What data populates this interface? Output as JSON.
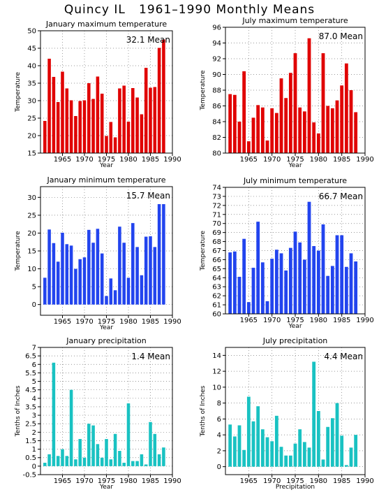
{
  "page_title": "Quincy IL   1961–1990 Monthly Means",
  "colors": {
    "red": "#e00000",
    "blue": "#2244ee",
    "teal": "#19c2c2",
    "grid": "#777777"
  },
  "chart_data": [
    {
      "type": "bar",
      "title": "January maximum temperature",
      "ylabel": "Temperature",
      "xlabel": "Year",
      "annotation": "32.1 Mean",
      "color": "#e00000",
      "x": [
        1961,
        1962,
        1963,
        1964,
        1965,
        1966,
        1967,
        1968,
        1969,
        1970,
        1971,
        1972,
        1973,
        1974,
        1975,
        1976,
        1977,
        1978,
        1979,
        1980,
        1981,
        1982,
        1983,
        1984,
        1985,
        1986,
        1987,
        1988,
        1989,
        1990
      ],
      "values": [
        24.2,
        42,
        36.8,
        29.6,
        38.3,
        33.5,
        30.1,
        25.6,
        29.9,
        30.1,
        35,
        30.5,
        36.9,
        32,
        19.9,
        23.9,
        19.5,
        33.5,
        34.3,
        24,
        33.6,
        30.9,
        26.1,
        39.4,
        33.7,
        33.9,
        45.1,
        47.5,
        null,
        null
      ],
      "ylim": [
        15,
        50
      ],
      "yticks": [
        15,
        20,
        25,
        30,
        35,
        40,
        45,
        50
      ],
      "ytick_labels": [
        "15",
        "20",
        "25",
        "30",
        "35",
        "40",
        "45",
        "50"
      ],
      "xlim": [
        1960,
        1990
      ],
      "xticks": [
        1965,
        1970,
        1975,
        1980,
        1985,
        1990
      ]
    },
    {
      "type": "bar",
      "title": "July maximum temperature",
      "ylabel": "Temperature",
      "xlabel": "Year",
      "annotation": "87.0 Mean",
      "color": "#e00000",
      "x": [
        1961,
        1962,
        1963,
        1964,
        1965,
        1966,
        1967,
        1968,
        1969,
        1970,
        1971,
        1972,
        1973,
        1974,
        1975,
        1976,
        1977,
        1978,
        1979,
        1980,
        1981,
        1982,
        1983,
        1984,
        1985,
        1986,
        1987,
        1988,
        1989,
        1990
      ],
      "values": [
        87.5,
        87.4,
        84,
        90.4,
        81.5,
        84.5,
        86.1,
        85.8,
        81.6,
        85.7,
        85.1,
        89.5,
        87,
        90.2,
        92.7,
        85.8,
        85.3,
        94.6,
        83.9,
        82.5,
        92.7,
        86,
        85.7,
        86.7,
        88.6,
        91.4,
        88,
        85.2,
        null,
        null
      ],
      "ylim": [
        80,
        96
      ],
      "yticks": [
        80,
        82,
        84,
        86,
        88,
        90,
        92,
        94,
        96
      ],
      "ytick_labels": [
        "80",
        "82",
        "84",
        "86",
        "88",
        "90",
        "92",
        "94",
        "96"
      ],
      "xlim": [
        1960,
        1990
      ],
      "xticks": [
        1965,
        1970,
        1975,
        1980,
        1985,
        1990
      ]
    },
    {
      "type": "bar",
      "title": "January minimum temperature",
      "ylabel": "Temperature",
      "xlabel": "Year",
      "annotation": "15.7 Mean",
      "color": "#2244ee",
      "x": [
        1961,
        1962,
        1963,
        1964,
        1965,
        1966,
        1967,
        1968,
        1969,
        1970,
        1971,
        1972,
        1973,
        1974,
        1975,
        1976,
        1977,
        1978,
        1979,
        1980,
        1981,
        1982,
        1983,
        1984,
        1985,
        1986,
        1987,
        1988,
        1989,
        1990
      ],
      "values": [
        7.5,
        21,
        17.2,
        12,
        20.1,
        16.9,
        16.5,
        10,
        12.7,
        13.2,
        20.9,
        17.3,
        21.2,
        14.3,
        2.4,
        7.3,
        4,
        21.8,
        17.3,
        7.5,
        22.8,
        16.1,
        8.2,
        19,
        19.1,
        16.1,
        28.1,
        28.1,
        null,
        null
      ],
      "ylim": [
        -3,
        33
      ],
      "yticks": [
        0,
        5,
        10,
        15,
        20,
        25,
        30
      ],
      "ytick_labels": [
        "0",
        "5",
        "10",
        "15",
        "20",
        "25",
        "30"
      ],
      "xlim": [
        1960,
        1990
      ],
      "xticks": [
        1965,
        1970,
        1975,
        1980,
        1985,
        1990
      ]
    },
    {
      "type": "bar",
      "title": "July minimum temperature",
      "ylabel": "Temperature",
      "xlabel": "Year",
      "annotation": "66.7 Mean",
      "color": "#2244ee",
      "x": [
        1961,
        1962,
        1963,
        1964,
        1965,
        1966,
        1967,
        1968,
        1969,
        1970,
        1971,
        1972,
        1973,
        1974,
        1975,
        1976,
        1977,
        1978,
        1979,
        1980,
        1981,
        1982,
        1983,
        1984,
        1985,
        1986,
        1987,
        1988,
        1989,
        1990
      ],
      "values": [
        66.8,
        66.9,
        64.1,
        68.3,
        61.3,
        65.1,
        70.2,
        65.7,
        61.4,
        66.1,
        67.1,
        66.7,
        64.8,
        67.3,
        69.1,
        67.9,
        66,
        72.4,
        67.5,
        67,
        69.9,
        64.2,
        65.3,
        68.7,
        68.7,
        65.2,
        66.7,
        65.8,
        null,
        null
      ],
      "ylim": [
        60,
        74
      ],
      "yticks": [
        60,
        61,
        62,
        63,
        64,
        65,
        66,
        67,
        68,
        69,
        70,
        71,
        72,
        73,
        74
      ],
      "ytick_labels": [
        "60",
        "61",
        "62",
        "63",
        "64",
        "65",
        "66",
        "67",
        "68",
        "69",
        "70",
        "71",
        "72",
        "73",
        "74"
      ],
      "xlim": [
        1960,
        1990
      ],
      "xticks": [
        1965,
        1970,
        1975,
        1980,
        1985,
        1990
      ]
    },
    {
      "type": "bar",
      "title": "January precipitation",
      "ylabel": "Tenths of Inches",
      "xlabel": "Year",
      "annotation": "1.4 Mean",
      "color": "#19c2c2",
      "x": [
        1961,
        1962,
        1963,
        1964,
        1965,
        1966,
        1967,
        1968,
        1969,
        1970,
        1971,
        1972,
        1973,
        1974,
        1975,
        1976,
        1977,
        1978,
        1979,
        1980,
        1981,
        1982,
        1983,
        1984,
        1985,
        1986,
        1987,
        1988,
        1989,
        1990
      ],
      "values": [
        0.2,
        0.7,
        6.1,
        0.6,
        1,
        0.6,
        4.5,
        0.4,
        1.6,
        0.5,
        2.5,
        2.4,
        1.3,
        0.5,
        1.6,
        0.4,
        1.9,
        0.9,
        0.2,
        3.7,
        0.3,
        0.3,
        0.7,
        0.1,
        2.6,
        1.9,
        0.7,
        1.1,
        null,
        null
      ],
      "ylim": [
        -0.5,
        7
      ],
      "yticks": [
        -0.5,
        0,
        0.5,
        1,
        1.5,
        2,
        2.5,
        3,
        3.5,
        4,
        4.5,
        5,
        5.5,
        6,
        6.5,
        7
      ],
      "ytick_labels": [
        "-0.5",
        "0",
        "0.5",
        "1",
        "1.5",
        "2",
        "2.5",
        "3",
        "3.5",
        "4",
        "4.5",
        "5",
        "5.5",
        "6",
        "6.5",
        "7"
      ],
      "xlim": [
        1960,
        1990
      ],
      "xticks": [
        1965,
        1970,
        1975,
        1980,
        1985,
        1990
      ]
    },
    {
      "type": "bar",
      "title": "July precipitation",
      "ylabel": "Tenths of Inches",
      "xlabel": "Precipitation",
      "annotation": "4.4 Mean",
      "color": "#19c2c2",
      "x": [
        1961,
        1962,
        1963,
        1964,
        1965,
        1966,
        1967,
        1968,
        1969,
        1970,
        1971,
        1972,
        1973,
        1974,
        1975,
        1976,
        1977,
        1978,
        1979,
        1980,
        1981,
        1982,
        1983,
        1984,
        1985,
        1986,
        1987,
        1988,
        1989,
        1990
      ],
      "values": [
        5.3,
        3.8,
        5.2,
        2.1,
        8.8,
        5.7,
        7.6,
        4.7,
        3.7,
        3.2,
        6.4,
        2.5,
        1.4,
        1.4,
        2.9,
        4.7,
        3.1,
        2.4,
        13.2,
        7,
        0.9,
        5,
        6.1,
        8,
        3.9,
        0.2,
        2.4,
        4,
        null,
        null
      ],
      "ylim": [
        -1,
        15
      ],
      "yticks": [
        0,
        2,
        4,
        6,
        8,
        10,
        12,
        14
      ],
      "ytick_labels": [
        "0",
        "2",
        "4",
        "6",
        "8",
        "10",
        "12",
        "14"
      ],
      "xlim": [
        1960,
        1990
      ],
      "xticks": [
        1965,
        1970,
        1975,
        1980,
        1985,
        1990
      ]
    }
  ]
}
